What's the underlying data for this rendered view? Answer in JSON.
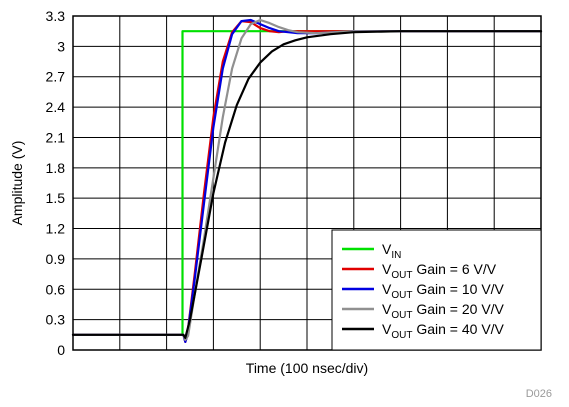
{
  "chart_data": {
    "type": "line",
    "title": "",
    "xlabel": "Time (100 nsec/div)",
    "ylabel": "Amplitude (V)",
    "figure_id": "D026",
    "ylim": [
      0,
      3.3
    ],
    "yticks": [
      "0",
      "0.3",
      "0.6",
      "0.9",
      "1.2",
      "1.5",
      "1.8",
      "2.1",
      "2.4",
      "2.7",
      "3",
      "3.3"
    ],
    "x_divisions": 10,
    "xlim": [
      0,
      1000
    ],
    "x_unit": "nsec",
    "grid": true,
    "legend_position": "lower-right",
    "series": [
      {
        "name": "VIN",
        "label_main": "V",
        "label_sub": "IN",
        "label_rest": "",
        "color": "#00e000",
        "x": [
          0,
          234,
          234,
          1000
        ],
        "y": [
          0.15,
          0.15,
          3.15,
          3.15
        ]
      },
      {
        "name": "VOUT Gain = 6 V/V",
        "label_main": "V",
        "label_sub": "OUT",
        "label_rest": " Gain = 6 V/V",
        "color": "#e00000",
        "x": [
          0,
          236,
          240,
          244,
          260,
          280,
          300,
          320,
          340,
          360,
          380,
          400,
          420,
          440,
          460,
          500,
          560,
          1000
        ],
        "y": [
          0.15,
          0.15,
          0.08,
          0.14,
          0.75,
          1.55,
          2.3,
          2.85,
          3.14,
          3.25,
          3.24,
          3.18,
          3.15,
          3.14,
          3.15,
          3.15,
          3.15,
          3.15
        ]
      },
      {
        "name": "VOUT Gain = 10 V/V",
        "label_main": "V",
        "label_sub": "OUT",
        "label_rest": " Gain = 10 V/V",
        "color": "#0000e0",
        "x": [
          0,
          236,
          240,
          244,
          260,
          280,
          300,
          320,
          340,
          360,
          380,
          400,
          420,
          440,
          480,
          520,
          560,
          600,
          1000
        ],
        "y": [
          0.15,
          0.15,
          0.08,
          0.14,
          0.7,
          1.45,
          2.2,
          2.78,
          3.12,
          3.25,
          3.26,
          3.22,
          3.18,
          3.15,
          3.13,
          3.13,
          3.14,
          3.15,
          3.15
        ]
      },
      {
        "name": "VOUT Gain = 20 V/V",
        "label_main": "V",
        "label_sub": "OUT",
        "label_rest": " Gain = 20 V/V",
        "color": "#909090",
        "x": [
          0,
          236,
          240,
          246,
          260,
          280,
          300,
          320,
          340,
          360,
          380,
          400,
          420,
          440,
          460,
          480,
          520,
          560,
          600,
          1000
        ],
        "y": [
          0.15,
          0.15,
          0.1,
          0.14,
          0.55,
          1.1,
          1.7,
          2.3,
          2.78,
          3.08,
          3.22,
          3.26,
          3.23,
          3.19,
          3.16,
          3.14,
          3.13,
          3.14,
          3.15,
          3.15
        ]
      },
      {
        "name": "VOUT Gain = 40 V/V",
        "label_main": "V",
        "label_sub": "OUT",
        "label_rest": " Gain = 40 V/V",
        "color": "#000000",
        "x": [
          0,
          236,
          240,
          250,
          275,
          300,
          325,
          350,
          375,
          400,
          425,
          450,
          475,
          500,
          550,
          600,
          650,
          700,
          750,
          800,
          900,
          1000
        ],
        "y": [
          0.15,
          0.15,
          0.12,
          0.3,
          0.92,
          1.55,
          2.05,
          2.42,
          2.68,
          2.84,
          2.95,
          3.02,
          3.06,
          3.09,
          3.12,
          3.14,
          3.145,
          3.15,
          3.15,
          3.15,
          3.15,
          3.15
        ]
      }
    ]
  }
}
